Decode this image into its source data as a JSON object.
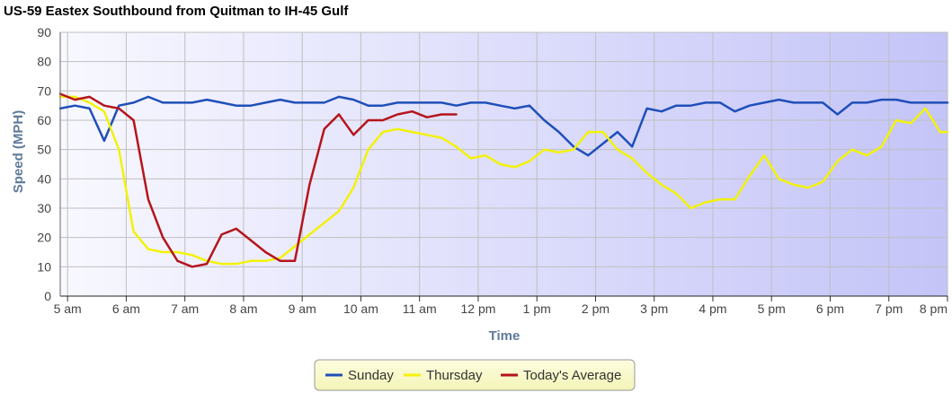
{
  "chart_data": {
    "type": "line",
    "title": "US-59 Eastex Southbound from Quitman to IH-45 Gulf",
    "xlabel": "Time",
    "ylabel": "Speed (MPH)",
    "ylim": [
      0,
      90
    ],
    "xlim": [
      4.875,
      20.0
    ],
    "yticks": [
      0,
      10,
      20,
      30,
      40,
      50,
      60,
      70,
      80,
      90
    ],
    "xticks": [
      {
        "x": 5,
        "label": "5 am"
      },
      {
        "x": 6,
        "label": "6 am"
      },
      {
        "x": 7,
        "label": "7 am"
      },
      {
        "x": 8,
        "label": "8 am"
      },
      {
        "x": 9,
        "label": "9 am"
      },
      {
        "x": 10,
        "label": "10 am"
      },
      {
        "x": 11,
        "label": "11 am"
      },
      {
        "x": 12,
        "label": "12 pm"
      },
      {
        "x": 13,
        "label": "1 pm"
      },
      {
        "x": 14,
        "label": "2 pm"
      },
      {
        "x": 15,
        "label": "3 pm"
      },
      {
        "x": 16,
        "label": "4 pm"
      },
      {
        "x": 17,
        "label": "5 pm"
      },
      {
        "x": 18,
        "label": "6 pm"
      },
      {
        "x": 19,
        "label": "7 pm"
      },
      {
        "x": 20,
        "label": "8 pm"
      }
    ],
    "grid": true,
    "legend_position": "bottom-center",
    "series": [
      {
        "name": "Sunday",
        "color": "#1f4fb8",
        "x": [
          4.875,
          5.125,
          5.375,
          5.625,
          5.875,
          6.125,
          6.375,
          6.625,
          6.875,
          7.125,
          7.375,
          7.625,
          7.875,
          8.125,
          8.375,
          8.625,
          8.875,
          9.125,
          9.375,
          9.625,
          9.875,
          10.125,
          10.375,
          10.625,
          10.875,
          11.125,
          11.375,
          11.625,
          11.875,
          12.125,
          12.375,
          12.625,
          12.875,
          13.125,
          13.375,
          13.625,
          13.875,
          14.125,
          14.375,
          14.625,
          14.875,
          15.125,
          15.375,
          15.625,
          15.875,
          16.125,
          16.375,
          16.625,
          16.875,
          17.125,
          17.375,
          17.625,
          17.875,
          18.125,
          18.375,
          18.625,
          18.875,
          19.125,
          19.375,
          19.625,
          19.875,
          20.0
        ],
        "y": [
          64,
          65,
          64,
          53,
          65,
          66,
          68,
          66,
          66,
          66,
          67,
          66,
          65,
          65,
          66,
          67,
          66,
          66,
          66,
          68,
          67,
          65,
          65,
          66,
          66,
          66,
          66,
          65,
          66,
          66,
          65,
          64,
          65,
          60,
          56,
          51,
          48,
          52,
          56,
          51,
          64,
          63,
          65,
          65,
          66,
          66,
          63,
          65,
          66,
          67,
          66,
          66,
          66,
          62,
          66,
          66,
          67,
          67,
          66,
          66,
          66,
          66
        ]
      },
      {
        "name": "Thursday",
        "color": "#f2f20a",
        "x": [
          4.875,
          5.125,
          5.375,
          5.625,
          5.875,
          6.125,
          6.375,
          6.625,
          6.875,
          7.125,
          7.375,
          7.625,
          7.875,
          8.125,
          8.375,
          8.625,
          8.875,
          9.125,
          9.375,
          9.625,
          9.875,
          10.125,
          10.375,
          10.625,
          10.875,
          11.125,
          11.375,
          11.625,
          11.875,
          12.125,
          12.375,
          12.625,
          12.875,
          13.125,
          13.375,
          13.625,
          13.875,
          14.125,
          14.375,
          14.625,
          14.875,
          15.125,
          15.375,
          15.625,
          15.875,
          16.125,
          16.375,
          16.625,
          16.875,
          17.125,
          17.375,
          17.625,
          17.875,
          18.125,
          18.375,
          18.625,
          18.875,
          19.125,
          19.375,
          19.625,
          19.875,
          20.0
        ],
        "y": [
          68,
          68,
          66,
          63,
          50,
          22,
          16,
          15,
          15,
          14,
          12,
          11,
          11,
          12,
          12,
          13,
          17,
          21,
          25,
          29,
          37,
          50,
          56,
          57,
          56,
          55,
          54,
          51,
          47,
          48,
          45,
          44,
          46,
          50,
          49,
          50,
          56,
          56,
          50,
          47,
          42,
          38,
          35,
          30,
          32,
          33,
          33,
          41,
          48,
          40,
          38,
          37,
          39,
          46,
          50,
          48,
          51,
          60,
          59,
          64,
          56,
          56
        ]
      },
      {
        "name": "Today's Average",
        "color": "#b5151b",
        "x": [
          4.875,
          5.125,
          5.375,
          5.625,
          5.875,
          6.125,
          6.375,
          6.625,
          6.875,
          7.125,
          7.375,
          7.625,
          7.875,
          8.125,
          8.375,
          8.625,
          8.875,
          9.125,
          9.375,
          9.625,
          9.875,
          10.125,
          10.375,
          10.625,
          10.875,
          11.125,
          11.375,
          11.625
        ],
        "y": [
          69,
          67,
          68,
          65,
          64,
          60,
          33,
          20,
          12,
          10,
          11,
          21,
          23,
          19,
          15,
          12,
          12,
          38,
          57,
          62,
          55,
          60,
          60,
          62,
          63,
          61,
          62,
          62
        ]
      }
    ]
  }
}
